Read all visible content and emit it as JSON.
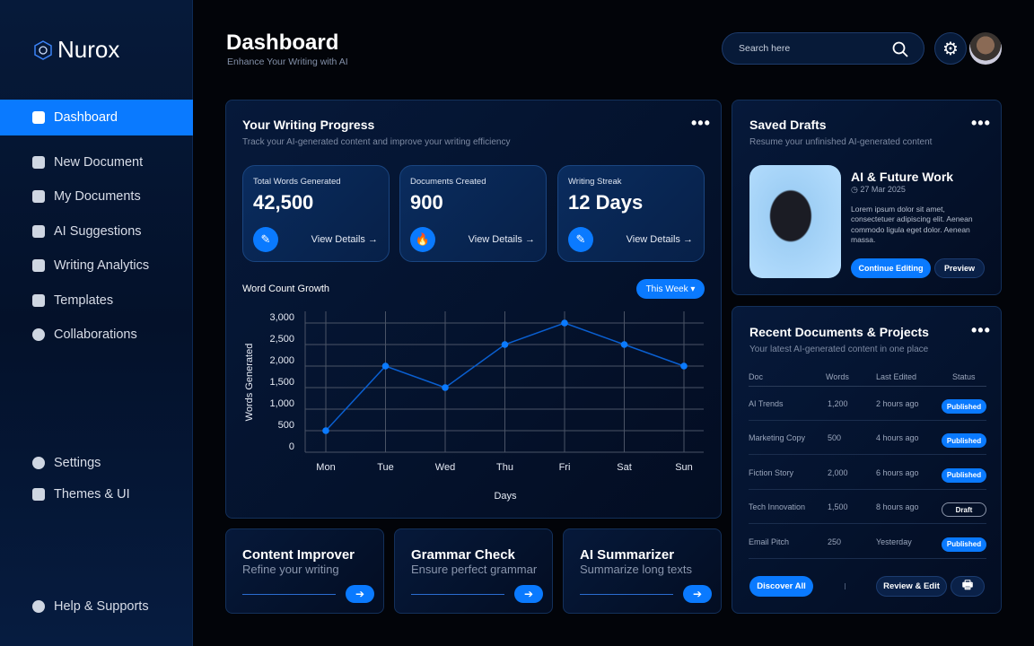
{
  "brand": {
    "name": "Nurox"
  },
  "sidebar": {
    "items": [
      {
        "label": "Dashboard",
        "active": true
      },
      {
        "label": "New Document"
      },
      {
        "label": "My Documents"
      },
      {
        "label": "AI Suggestions"
      },
      {
        "label": "Writing Analytics"
      },
      {
        "label": "Templates"
      },
      {
        "label": "Collaborations"
      }
    ],
    "bottom": [
      {
        "label": "Settings"
      },
      {
        "label": "Themes & UI"
      }
    ],
    "help": "Help & Supports"
  },
  "header": {
    "title": "Dashboard",
    "subtitle": "Enhance Your Writing with AI",
    "search_placeholder": "Search here"
  },
  "progress": {
    "title": "Your Writing Progress",
    "subtitle": "Track your AI-generated content and improve your writing efficiency",
    "stats": [
      {
        "label": "Total Words Generated",
        "value": "42,500",
        "link": "View Details →",
        "icon": "pen-icon"
      },
      {
        "label": "Documents Created",
        "value": "900",
        "link": "View Details →",
        "icon": "fire-icon"
      },
      {
        "label": "Writing Streak",
        "value": "12 Days",
        "link": "View Details →",
        "icon": "pen-icon"
      }
    ],
    "chart_title": "Word Count Growth",
    "period": "This Week ▾"
  },
  "chart_data": {
    "type": "line",
    "categories": [
      "Mon",
      "Tue",
      "Wed",
      "Thu",
      "Fri",
      "Sat",
      "Sun"
    ],
    "values": [
      500,
      2000,
      1500,
      2500,
      3000,
      2500,
      2000
    ],
    "xlabel": "Days",
    "ylabel": "Words Generated",
    "ylim": [
      0,
      3000
    ],
    "yticks": [
      "0",
      "500",
      "1,000",
      "1,500",
      "2,000",
      "2,500",
      "3,000"
    ],
    "grid": true,
    "color": "#0a7aff"
  },
  "drafts": {
    "title": "Saved Drafts",
    "subtitle": "Resume your unfinished AI-generated content",
    "item_title": "AI & Future Work",
    "date": "27 Mar 2025",
    "body": "Lorem ipsum dolor sit amet, consectetuer adipiscing elit. Aenean commodo ligula eget dolor. Aenean massa.",
    "continue": "Continue Editing",
    "preview": "Preview"
  },
  "recent": {
    "title": "Recent Documents & Projects",
    "subtitle": "Your latest AI-generated content in one place",
    "headers": [
      "Doc",
      "Words",
      "Last Edited",
      "Status"
    ],
    "rows": [
      {
        "doc": "AI Trends",
        "words": "1,200",
        "edited": "2 hours ago",
        "status": "Published"
      },
      {
        "doc": "Marketing Copy",
        "words": "500",
        "edited": "4 hours ago",
        "status": "Published"
      },
      {
        "doc": "Fiction Story",
        "words": "2,000",
        "edited": "6 hours ago",
        "status": "Published"
      },
      {
        "doc": "Tech Innovation",
        "words": "1,500",
        "edited": "8 hours ago",
        "status": "Draft"
      },
      {
        "doc": "Email Pitch",
        "words": "250",
        "edited": "Yesterday",
        "status": "Published"
      }
    ],
    "discover": "Discover All",
    "review": "Review & Edit"
  },
  "tools": [
    {
      "title": "Content Improver",
      "sub": "Refine your writing"
    },
    {
      "title": "Grammar Check",
      "sub": "Ensure perfect grammar"
    },
    {
      "title": "AI Summarizer",
      "sub": "Summarize long texts"
    }
  ],
  "colors": {
    "accent": "#0a7aff",
    "background": "#020409"
  }
}
